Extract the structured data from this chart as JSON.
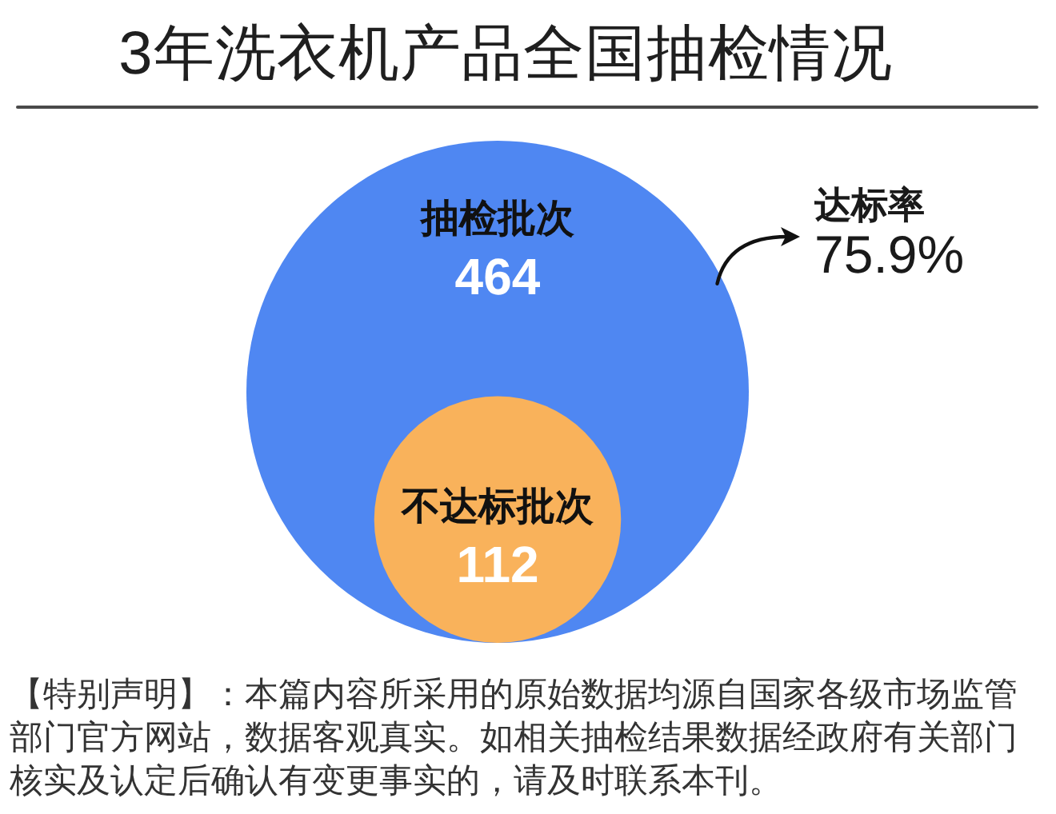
{
  "chart_data": {
    "type": "other",
    "title": "3年洗衣机产品全国抽检情况",
    "categories": [
      "抽检批次",
      "不达标批次"
    ],
    "values": [
      464,
      112
    ],
    "colors": [
      "#4f87f2",
      "#f9b25b"
    ],
    "data_labels": true,
    "annotations": [
      "达标率",
      "75.9%",
      "【特别声明】：本篇内容所采用的原始数据均源自国家各级市场监管部门官方网站，数据客观真实。如相关抽检结果数据经政府有关部门核实及认定后确认有变更事实的，请及时联系本刊。"
    ]
  }
}
